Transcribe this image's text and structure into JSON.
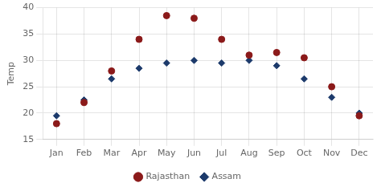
{
  "chart_data": {
    "type": "scatter",
    "categories": [
      "Jan",
      "Feb",
      "Mar",
      "Apr",
      "May",
      "Jun",
      "Jul",
      "Aug",
      "Sep",
      "Oct",
      "Nov",
      "Dec"
    ],
    "series": [
      {
        "name": "Rajasthan",
        "color": "#8B1A1A",
        "marker": "circle",
        "values": [
          18,
          22,
          28,
          34,
          38.5,
          38,
          34,
          31,
          31.5,
          30.5,
          25,
          19.5
        ]
      },
      {
        "name": "Assam",
        "color": "#1C3A6B",
        "marker": "diamond",
        "values": [
          19.5,
          22.5,
          26.5,
          28.5,
          29.5,
          30,
          29.5,
          30,
          29,
          26.5,
          23,
          20
        ]
      }
    ],
    "ylabel": "Temp",
    "ylim": [
      15,
      40
    ],
    "yticks": [
      15,
      20,
      25,
      30,
      35,
      40
    ],
    "grid": true,
    "legend": "bottom"
  }
}
